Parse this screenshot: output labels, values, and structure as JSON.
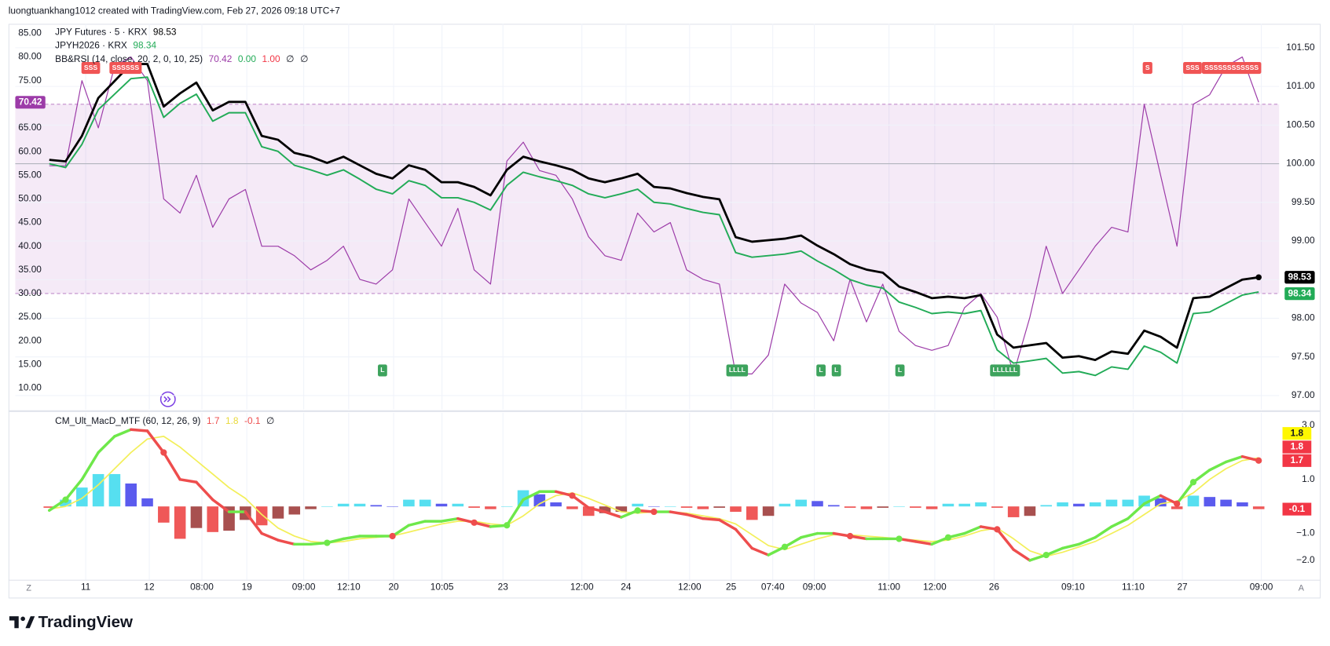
{
  "header": "luongtuankhang1012 created with TradingView.com, Feb 27, 2026 09:18 UTC+7",
  "footer": "TradingView",
  "axis_buttons": [
    "Z",
    "A"
  ],
  "chart_data": [
    {
      "type": "line",
      "xlim": [
        -2.08,
        75.25
      ],
      "ylim": [
        5.5,
        87
      ],
      "yticks": [
        {
          "value": 10,
          "label": "10.00"
        },
        {
          "value": 15,
          "label": "15.00"
        },
        {
          "value": 20,
          "label": "20.00"
        },
        {
          "value": 25,
          "label": "25.00"
        },
        {
          "value": 30,
          "label": "30.00"
        },
        {
          "value": 35,
          "label": "35.00"
        },
        {
          "value": 40,
          "label": "40.00"
        },
        {
          "value": 45,
          "label": "45.00"
        },
        {
          "value": 50,
          "label": "50.00"
        },
        {
          "value": 55,
          "label": "55.00"
        },
        {
          "value": 60,
          "label": "60.00"
        },
        {
          "value": 65,
          "label": "65.00"
        },
        {
          "value": 70,
          "label": "70.00"
        },
        {
          "value": 75,
          "label": "75.00"
        },
        {
          "value": 80,
          "label": "80.00"
        },
        {
          "value": 85,
          "label": "85.00"
        }
      ],
      "y2lim": [
        96.82,
        101.81
      ],
      "y2ticks": [
        {
          "value": 97,
          "label": "97.00"
        },
        {
          "value": 97.5,
          "label": "97.50"
        },
        {
          "value": 98,
          "label": "98.00"
        },
        {
          "value": 98.5,
          "label": "98.50"
        },
        {
          "value": 99,
          "label": "99.00"
        },
        {
          "value": 99.5,
          "label": "99.50"
        },
        {
          "value": 100,
          "label": "100.00"
        },
        {
          "value": 100.5,
          "label": "100.50"
        },
        {
          "value": 101,
          "label": "101.00"
        },
        {
          "value": 101.5,
          "label": "101.50"
        }
      ],
      "grid": true,
      "rsi_band": [
        30,
        70
      ],
      "band_color": "rgba(186,104,200,0.14)",
      "baseline": 100,
      "series": [
        {
          "name": "JPY Futures · 5 · KRX",
          "color": "#000000",
          "axis": "y2",
          "values": [
            100.05,
            100.03,
            100.36,
            100.85,
            101.07,
            101.29,
            101.29,
            100.74,
            100.91,
            101.05,
            100.69,
            100.8,
            100.8,
            100.36,
            100.31,
            100.14,
            100.09,
            100.01,
            100.09,
            99.98,
            99.87,
            99.81,
            99.98,
            99.92,
            99.76,
            99.76,
            99.7,
            99.59,
            99.92,
            100.09,
            100.03,
            99.98,
            99.92,
            99.81,
            99.76,
            99.81,
            99.87,
            99.7,
            99.68,
            99.62,
            99.57,
            99.54,
            99.05,
            98.99,
            99.01,
            99.03,
            99.07,
            98.94,
            98.83,
            98.7,
            98.63,
            98.59,
            98.41,
            98.34,
            98.26,
            98.28,
            98.26,
            98.3,
            97.79,
            97.62,
            97.65,
            97.68,
            97.49,
            97.51,
            97.46,
            97.57,
            97.54,
            97.84,
            97.76,
            97.62,
            98.26,
            98.28,
            98.39,
            98.5,
            98.53
          ]
        },
        {
          "name": "JPYH2026 · KRX",
          "color": "#22ab57",
          "axis": "y2",
          "values": [
            100.0,
            99.95,
            100.25,
            100.7,
            100.9,
            101.1,
            101.12,
            100.6,
            100.78,
            100.9,
            100.55,
            100.66,
            100.66,
            100.22,
            100.16,
            99.98,
            99.92,
            99.85,
            99.92,
            99.8,
            99.67,
            99.61,
            99.78,
            99.72,
            99.56,
            99.56,
            99.5,
            99.4,
            99.72,
            99.89,
            99.83,
            99.78,
            99.72,
            99.61,
            99.56,
            99.61,
            99.67,
            99.5,
            99.48,
            99.42,
            99.37,
            99.34,
            98.85,
            98.79,
            98.81,
            98.83,
            98.87,
            98.74,
            98.63,
            98.5,
            98.43,
            98.39,
            98.21,
            98.14,
            98.06,
            98.08,
            98.06,
            98.1,
            97.59,
            97.42,
            97.45,
            97.48,
            97.29,
            97.31,
            97.26,
            97.37,
            97.34,
            97.64,
            97.56,
            97.42,
            98.06,
            98.08,
            98.19,
            98.3,
            98.34
          ]
        },
        {
          "name": "BB&RSI (14, close, 20, 2, 0, 10, 25)",
          "color": "#9c3ba8",
          "values": [
            57,
            57,
            75,
            65,
            78,
            80,
            75,
            50,
            47,
            55,
            44,
            50,
            52,
            40,
            40,
            38,
            35,
            37,
            40,
            33,
            32,
            35,
            50,
            45,
            40,
            48,
            35,
            32,
            58,
            62,
            56,
            55,
            50,
            42,
            38,
            37,
            47,
            43,
            45,
            35,
            33,
            32,
            13,
            13,
            17,
            32,
            28,
            26,
            20,
            33,
            24,
            32,
            22,
            19,
            18,
            19,
            27,
            30,
            25,
            13,
            25,
            40,
            30,
            35,
            40,
            44,
            43,
            70,
            55,
            40,
            70,
            72,
            78,
            80,
            70.42
          ]
        }
      ],
      "legend_extra": [
        {
          "text": "0.00",
          "color": "#22ab57"
        },
        {
          "text": "1.00",
          "color": "#f23645"
        },
        {
          "text": "∅",
          "color": "#131722"
        },
        {
          "text": "∅",
          "color": "#131722"
        }
      ],
      "signal_colors": {
        "sell": "#f05454",
        "buy": "#3da35d"
      },
      "sell_signals": [
        {
          "label": "SSS",
          "x": 2.54
        },
        {
          "label": "SSSSSS",
          "x": 4.67
        },
        {
          "label": "S",
          "x": 67.2
        },
        {
          "label": "SSS",
          "x": 69.95
        },
        {
          "label": "SSSSSSSSSSSS",
          "x": 72.34
        }
      ],
      "buy_signals": [
        {
          "label": "L",
          "x": 20.39
        },
        {
          "label": "LLLL",
          "x": 42.09
        },
        {
          "label": "L",
          "x": 47.22
        },
        {
          "label": "L",
          "x": 48.16
        },
        {
          "label": "L",
          "x": 52.05
        },
        {
          "label": "LLLLLL",
          "x": 58.48
        }
      ]
    },
    {
      "type": "macd",
      "title": "CM_Ult_MacD_MTF (60, 12, 26, 9)",
      "legend_extra": [
        {
          "text": "∅",
          "color": "#131722"
        }
      ],
      "xlim": [
        -2.08,
        75.25
      ],
      "xticks": [
        {
          "value": 2.23,
          "label": "11"
        },
        {
          "value": 6.12,
          "label": "12"
        },
        {
          "value": 9.34,
          "label": "08:00"
        },
        {
          "value": 12.09,
          "label": "19"
        },
        {
          "value": 15.57,
          "label": "09:00"
        },
        {
          "value": 18.32,
          "label": "12:10"
        },
        {
          "value": 21.07,
          "label": "20"
        },
        {
          "value": 24.03,
          "label": "10:05"
        },
        {
          "value": 27.76,
          "label": "23"
        },
        {
          "value": 32.59,
          "label": "12:00"
        },
        {
          "value": 35.29,
          "label": "24"
        },
        {
          "value": 39.18,
          "label": "12:00"
        },
        {
          "value": 41.72,
          "label": "25"
        },
        {
          "value": 44.27,
          "label": "07:40"
        },
        {
          "value": 46.81,
          "label": "09:00"
        },
        {
          "value": 51.38,
          "label": "11:00"
        },
        {
          "value": 54.18,
          "label": "12:00"
        },
        {
          "value": 57.81,
          "label": "26"
        },
        {
          "value": 62.64,
          "label": "09:10"
        },
        {
          "value": 66.32,
          "label": "11:10"
        },
        {
          "value": 69.33,
          "label": "27"
        },
        {
          "value": 74.16,
          "label": "09:00"
        }
      ],
      "ylim": [
        -2.72,
        3.47
      ],
      "yticks": [
        {
          "value": -2,
          "label": "−2.0"
        },
        {
          "value": -1,
          "label": "−1.0"
        },
        {
          "value": 1,
          "label": "1.0"
        },
        {
          "value": 3,
          "label": "3.0"
        }
      ],
      "colors": {
        "up": "#6ee84a",
        "down": "#ee4d4d",
        "signal": "#f3ef5a",
        "hist_up_rising": "#56dff0",
        "hist_up_falling": "#5b5bee",
        "hist_down_falling": "#ef5858",
        "hist_down_rising": "#a8504f"
      },
      "macd": [
        -0.15,
        0.25,
        1.0,
        2.0,
        2.6,
        2.85,
        2.8,
        2.0,
        1.0,
        0.9,
        0.25,
        -0.2,
        -0.2,
        -1.0,
        -1.25,
        -1.4,
        -1.4,
        -1.35,
        -1.2,
        -1.1,
        -1.1,
        -1.1,
        -0.7,
        -0.55,
        -0.55,
        -0.45,
        -0.6,
        -0.75,
        -0.7,
        0.25,
        0.55,
        0.55,
        0.4,
        -0.05,
        -0.2,
        -0.4,
        -0.15,
        -0.2,
        -0.2,
        -0.3,
        -0.45,
        -0.5,
        -0.85,
        -1.55,
        -1.8,
        -1.5,
        -1.15,
        -1.0,
        -1.0,
        -1.1,
        -1.2,
        -1.2,
        -1.2,
        -1.3,
        -1.4,
        -1.15,
        -1.0,
        -0.75,
        -0.85,
        -1.6,
        -2.0,
        -1.8,
        -1.55,
        -1.4,
        -1.15,
        -0.75,
        -0.45,
        0.1,
        0.4,
        0.1,
        0.9,
        1.35,
        1.65,
        1.85,
        1.7
      ],
      "signal": [
        -0.1,
        0.0,
        0.3,
        0.8,
        1.4,
        2.0,
        2.5,
        2.6,
        2.2,
        1.7,
        1.2,
        0.7,
        0.3,
        -0.3,
        -0.8,
        -1.1,
        -1.3,
        -1.35,
        -1.3,
        -1.2,
        -1.15,
        -1.1,
        -0.95,
        -0.8,
        -0.65,
        -0.55,
        -0.55,
        -0.65,
        -0.7,
        -0.35,
        0.1,
        0.4,
        0.5,
        0.3,
        0.05,
        -0.2,
        -0.25,
        -0.2,
        -0.2,
        -0.25,
        -0.35,
        -0.45,
        -0.65,
        -1.05,
        -1.45,
        -1.6,
        -1.4,
        -1.2,
        -1.05,
        -1.05,
        -1.1,
        -1.15,
        -1.2,
        -1.25,
        -1.3,
        -1.25,
        -1.1,
        -0.9,
        -0.8,
        -1.2,
        -1.65,
        -1.85,
        -1.7,
        -1.5,
        -1.3,
        -1.0,
        -0.7,
        -0.3,
        0.1,
        0.2,
        0.5,
        1.0,
        1.4,
        1.7,
        1.8
      ],
      "histogram": [
        -0.05,
        0.25,
        0.7,
        1.2,
        1.2,
        0.85,
        0.3,
        -0.6,
        -1.2,
        -0.8,
        -0.95,
        -0.9,
        -0.5,
        -0.7,
        -0.45,
        -0.3,
        -0.1,
        0.0,
        0.1,
        0.1,
        0.05,
        0.0,
        0.25,
        0.25,
        0.1,
        0.1,
        -0.05,
        -0.1,
        0.0,
        0.6,
        0.45,
        0.15,
        -0.1,
        -0.35,
        -0.25,
        -0.2,
        0.1,
        0.0,
        0.0,
        -0.05,
        -0.1,
        -0.05,
        -0.2,
        -0.5,
        -0.35,
        0.1,
        0.25,
        0.2,
        0.05,
        -0.05,
        -0.1,
        -0.05,
        0.0,
        -0.05,
        -0.1,
        0.1,
        0.1,
        0.15,
        -0.05,
        -0.4,
        -0.35,
        0.05,
        0.15,
        0.1,
        0.15,
        0.25,
        0.25,
        0.4,
        0.3,
        -0.1,
        0.4,
        0.35,
        0.25,
        0.15,
        -0.1
      ],
      "badges": [
        {
          "value": 1.8,
          "color": "#f23645"
        }
      ]
    }
  ]
}
